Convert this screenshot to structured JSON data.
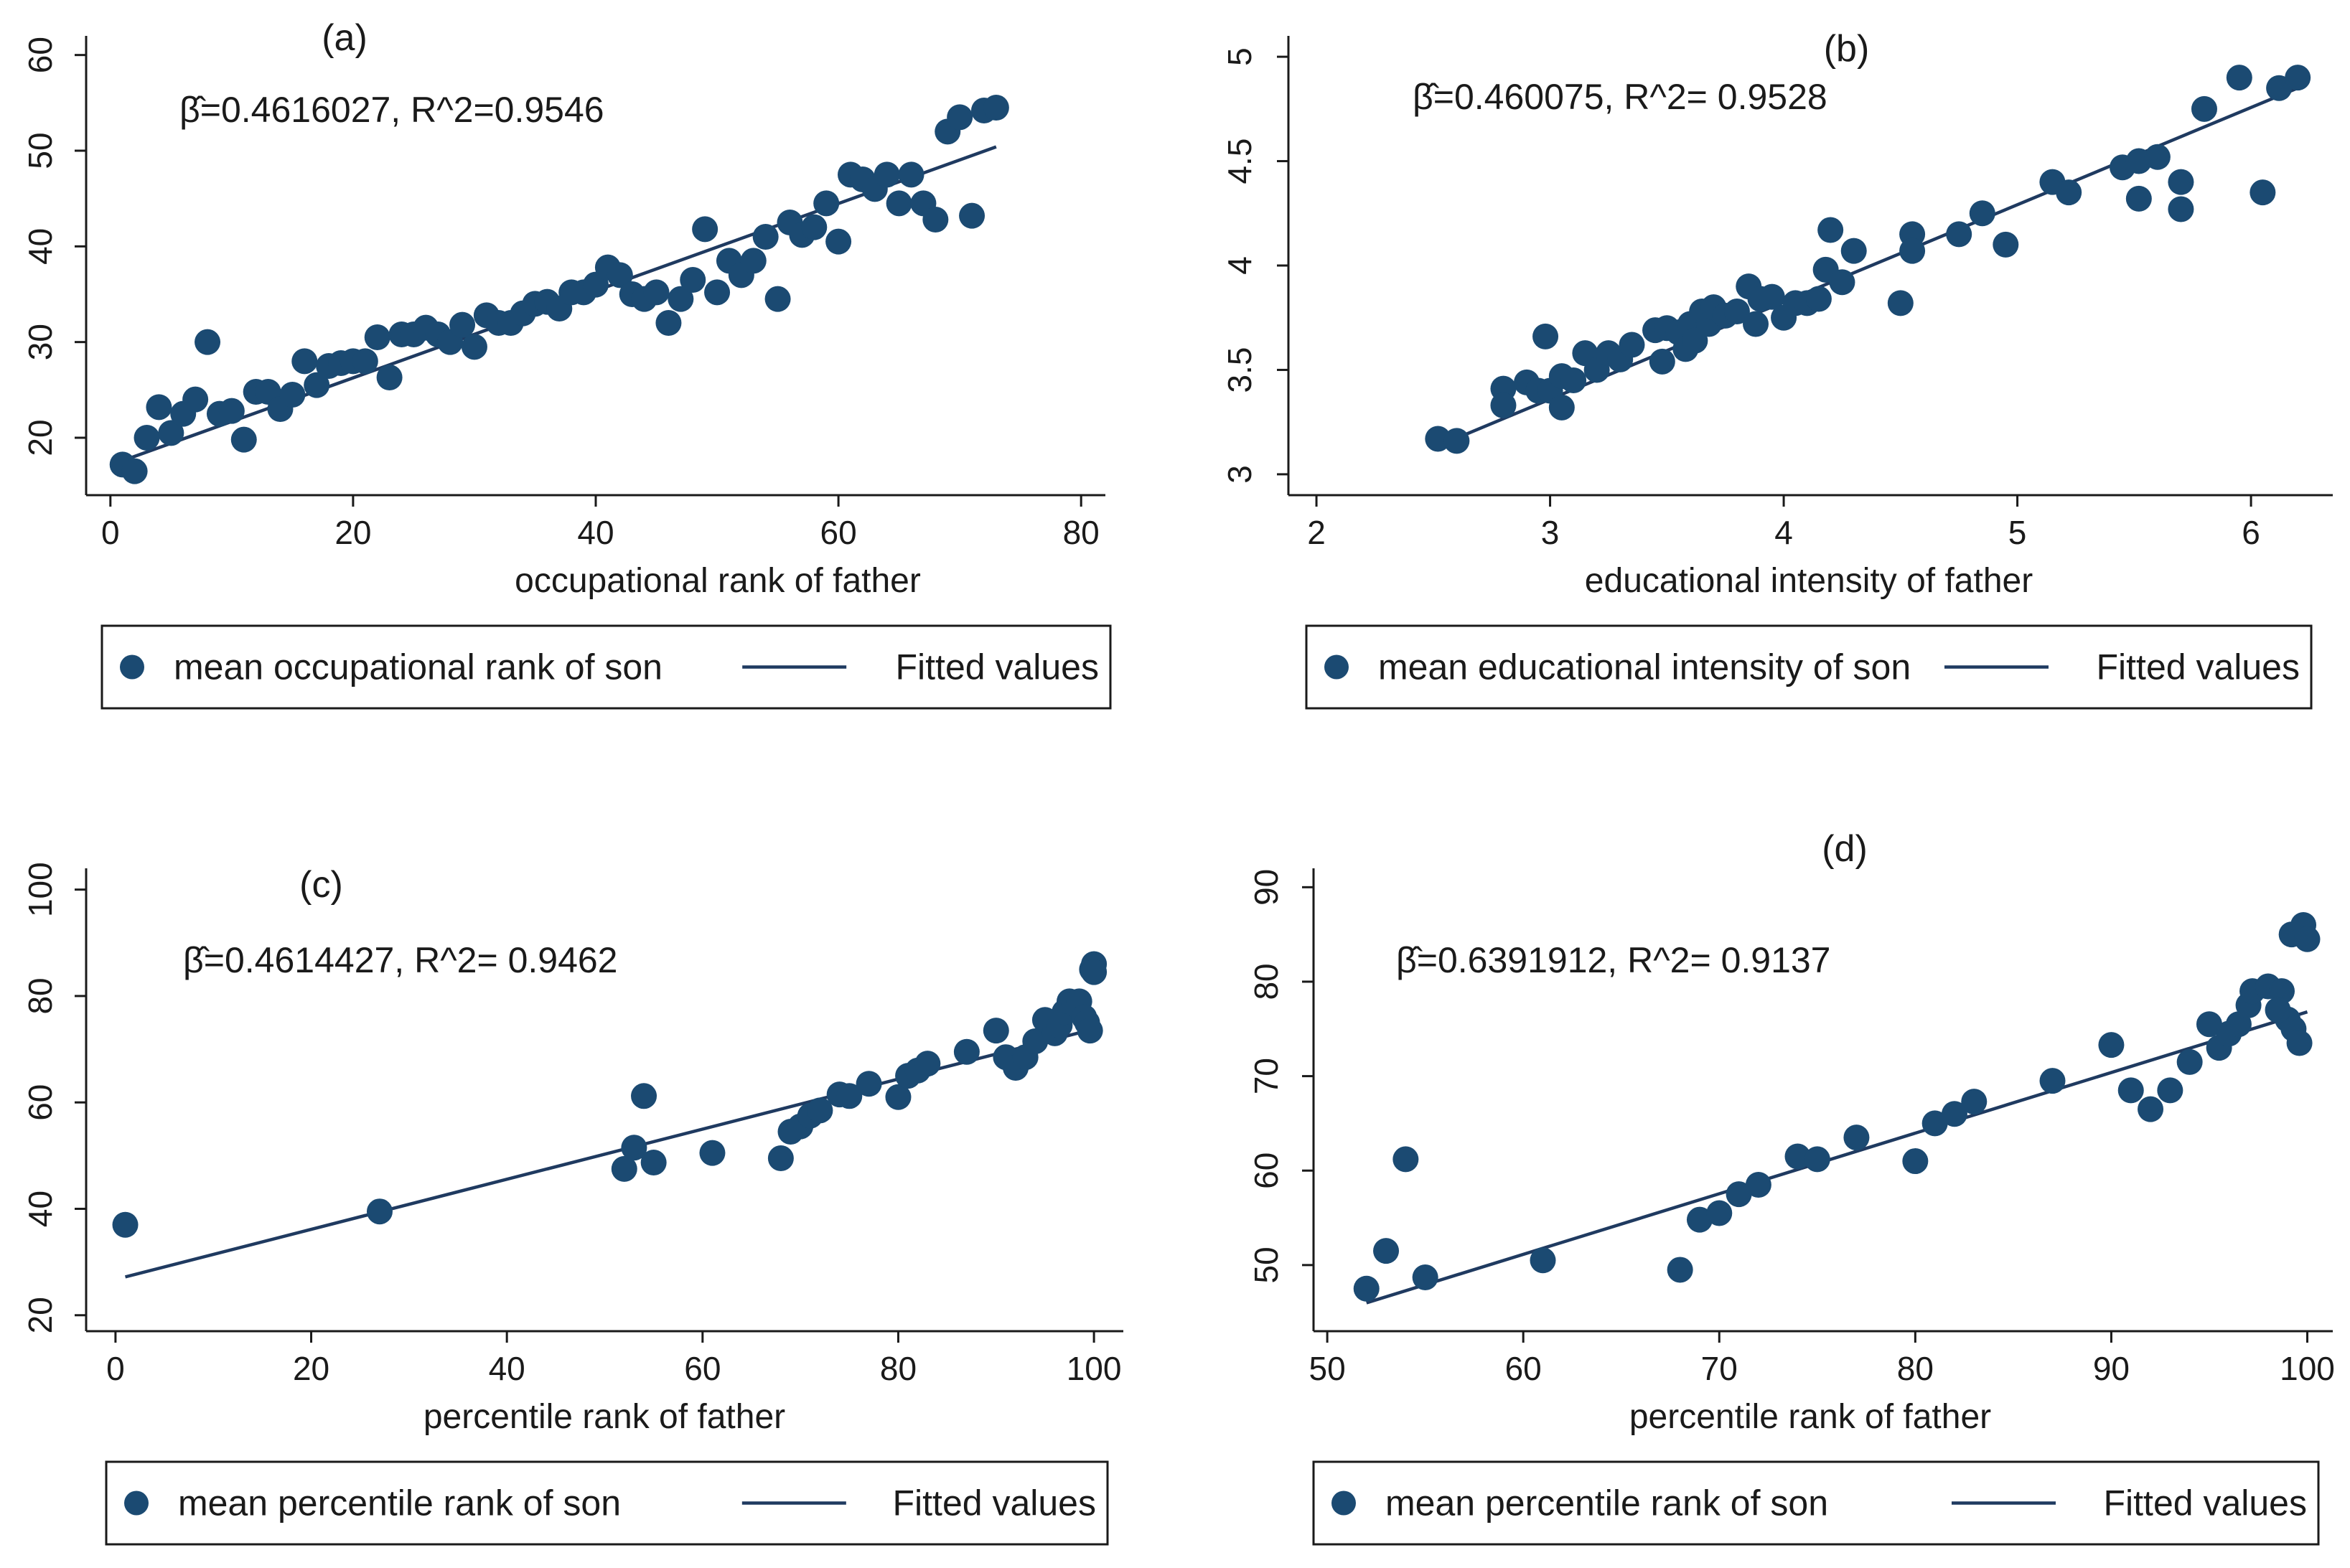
{
  "colors": {
    "points": "#1b4a72",
    "fit_line": "#1f3a60",
    "axis": "#1a1a1a",
    "background": "#ffffff"
  },
  "chart_data": [
    {
      "type": "scatter",
      "title": "(a)",
      "annotation": "β̂=0.4616027,   R^2=0.9546",
      "xlabel": "occupational rank of father",
      "ylabel": "",
      "xlim": [
        -2,
        82
      ],
      "ylim": [
        14,
        62
      ],
      "xticks": [
        0,
        20,
        40,
        60,
        80
      ],
      "yticks": [
        20,
        30,
        40,
        50,
        60
      ],
      "legend": [
        "mean occupational rank of son",
        "Fitted values"
      ],
      "fit": {
        "x": [
          1,
          73
        ],
        "y": [
          17.6,
          50.4
        ]
      },
      "points": [
        [
          1,
          17.2
        ],
        [
          2,
          16.5
        ],
        [
          3,
          20
        ],
        [
          4,
          23.2
        ],
        [
          5,
          20.5
        ],
        [
          6,
          22.5
        ],
        [
          7,
          24
        ],
        [
          8,
          30
        ],
        [
          9,
          22.5
        ],
        [
          10,
          22.8
        ],
        [
          11,
          19.8
        ],
        [
          12,
          24.8
        ],
        [
          13,
          24.8
        ],
        [
          14,
          23
        ],
        [
          15,
          24.5
        ],
        [
          16,
          28
        ],
        [
          17,
          25.5
        ],
        [
          18,
          27.5
        ],
        [
          19,
          27.8
        ],
        [
          20,
          28
        ],
        [
          21,
          28
        ],
        [
          22,
          30.5
        ],
        [
          23,
          26.3
        ],
        [
          24,
          30.8
        ],
        [
          25,
          30.8
        ],
        [
          26,
          31.5
        ],
        [
          27,
          30.8
        ],
        [
          28,
          30
        ],
        [
          29,
          31.8
        ],
        [
          30,
          29.5
        ],
        [
          31,
          32.8
        ],
        [
          32,
          32
        ],
        [
          33,
          32
        ],
        [
          34,
          33
        ],
        [
          35,
          34
        ],
        [
          36,
          34.2
        ],
        [
          37,
          33.5
        ],
        [
          38,
          35.2
        ],
        [
          39,
          35.2
        ],
        [
          40,
          36
        ],
        [
          41,
          37.8
        ],
        [
          42,
          37
        ],
        [
          43,
          35
        ],
        [
          44,
          34.5
        ],
        [
          45,
          35.2
        ],
        [
          46,
          32
        ],
        [
          47,
          34.5
        ],
        [
          48,
          36.5
        ],
        [
          49,
          41.8
        ],
        [
          50,
          35.2
        ],
        [
          51,
          38.5
        ],
        [
          52,
          37
        ],
        [
          53,
          38.5
        ],
        [
          54,
          41
        ],
        [
          55,
          34.5
        ],
        [
          56,
          42.5
        ],
        [
          57,
          41.2
        ],
        [
          58,
          42
        ],
        [
          59,
          44.5
        ],
        [
          60,
          40.5
        ],
        [
          61,
          47.5
        ],
        [
          62,
          47
        ],
        [
          63,
          46
        ],
        [
          64,
          47.5
        ],
        [
          65,
          44.5
        ],
        [
          66,
          47.5
        ],
        [
          67,
          44.5
        ],
        [
          68,
          42.8
        ],
        [
          69,
          52
        ],
        [
          70,
          53.5
        ],
        [
          71,
          43.2
        ],
        [
          72,
          54.2
        ],
        [
          73,
          54.5
        ]
      ]
    },
    {
      "type": "scatter",
      "title": "(b)",
      "annotation": "β̂=0.460075,   R^2= 0.9528",
      "xlabel": "educational intensity of father",
      "ylabel": "",
      "xlim": [
        1.88,
        6.35
      ],
      "ylim": [
        2.9,
        5.1
      ],
      "xticks": [
        2,
        3,
        4,
        5,
        6
      ],
      "yticks": [
        3,
        3.5,
        4,
        4.5,
        5
      ],
      "legend": [
        "mean educational intensity of son",
        "Fitted values"
      ],
      "fit": {
        "x": [
          2.55,
          6.2
        ],
        "y": [
          3.15,
          4.85
        ]
      },
      "points": [
        [
          2.52,
          3.17
        ],
        [
          2.6,
          3.16
        ],
        [
          2.8,
          3.41
        ],
        [
          2.8,
          3.33
        ],
        [
          2.9,
          3.44
        ],
        [
          2.95,
          3.4
        ],
        [
          2.98,
          3.66
        ],
        [
          3,
          3.4
        ],
        [
          3.05,
          3.32
        ],
        [
          3.05,
          3.47
        ],
        [
          3.1,
          3.45
        ],
        [
          3.15,
          3.58
        ],
        [
          3.2,
          3.5
        ],
        [
          3.25,
          3.58
        ],
        [
          3.3,
          3.55
        ],
        [
          3.35,
          3.62
        ],
        [
          3.45,
          3.69
        ],
        [
          3.48,
          3.54
        ],
        [
          3.5,
          3.7
        ],
        [
          3.55,
          3.68
        ],
        [
          3.58,
          3.6
        ],
        [
          3.6,
          3.72
        ],
        [
          3.62,
          3.64
        ],
        [
          3.65,
          3.78
        ],
        [
          3.68,
          3.72
        ],
        [
          3.7,
          3.8
        ],
        [
          3.75,
          3.76
        ],
        [
          3.8,
          3.78
        ],
        [
          3.85,
          3.9
        ],
        [
          3.88,
          3.72
        ],
        [
          3.9,
          3.84
        ],
        [
          3.95,
          3.85
        ],
        [
          4,
          3.75
        ],
        [
          4.05,
          3.82
        ],
        [
          4.1,
          3.82
        ],
        [
          4.15,
          3.84
        ],
        [
          4.18,
          3.98
        ],
        [
          4.2,
          4.17
        ],
        [
          4.25,
          3.92
        ],
        [
          4.3,
          4.07
        ],
        [
          4.5,
          3.82
        ],
        [
          4.55,
          4.15
        ],
        [
          4.55,
          4.07
        ],
        [
          4.75,
          4.15
        ],
        [
          4.85,
          4.25
        ],
        [
          4.95,
          4.1
        ],
        [
          5.15,
          4.4
        ],
        [
          5.22,
          4.35
        ],
        [
          5.45,
          4.47
        ],
        [
          5.52,
          4.5
        ],
        [
          5.52,
          4.32
        ],
        [
          5.6,
          4.52
        ],
        [
          5.7,
          4.4
        ],
        [
          5.7,
          4.27
        ],
        [
          5.8,
          4.75
        ],
        [
          5.95,
          4.9
        ],
        [
          6.05,
          4.35
        ],
        [
          6.12,
          4.85
        ],
        [
          6.2,
          4.9
        ]
      ]
    },
    {
      "type": "scatter",
      "title": "(c)",
      "annotation": "β̂=0.4614427,   R^2= 0.9462",
      "xlabel": "percentile rank of father",
      "ylabel": "",
      "xlim": [
        -3,
        103
      ],
      "ylim": [
        17,
        104
      ],
      "xticks": [
        0,
        20,
        40,
        60,
        80,
        100
      ],
      "yticks": [
        20,
        40,
        60,
        80,
        100
      ],
      "legend": [
        "mean percentile rank of son",
        "Fitted values"
      ],
      "fit": {
        "x": [
          1,
          100
        ],
        "y": [
          27.2,
          73.8
        ]
      },
      "points": [
        [
          1,
          37
        ],
        [
          27,
          39.5
        ],
        [
          52,
          47.5
        ],
        [
          53,
          51.5
        ],
        [
          54,
          61.2
        ],
        [
          55,
          48.7
        ],
        [
          61,
          50.5
        ],
        [
          68,
          49.5
        ],
        [
          69,
          54.5
        ],
        [
          70,
          55.5
        ],
        [
          71,
          57.5
        ],
        [
          72,
          58.5
        ],
        [
          74,
          61.5
        ],
        [
          75,
          61.2
        ],
        [
          77,
          63.5
        ],
        [
          80,
          61
        ],
        [
          81,
          65
        ],
        [
          82,
          66
        ],
        [
          83,
          67.3
        ],
        [
          87,
          69.5
        ],
        [
          90,
          73.5
        ],
        [
          91,
          68.5
        ],
        [
          92,
          66.5
        ],
        [
          93,
          68.5
        ],
        [
          94,
          71.5
        ],
        [
          95,
          75.5
        ],
        [
          96,
          73
        ],
        [
          96.5,
          74.5
        ],
        [
          97,
          77
        ],
        [
          97.5,
          79
        ],
        [
          98,
          78.5
        ],
        [
          98.5,
          79
        ],
        [
          99,
          76
        ],
        [
          99.3,
          75
        ],
        [
          99.6,
          73.5
        ],
        [
          99.8,
          85
        ],
        [
          100,
          86
        ],
        [
          100,
          84.5
        ]
      ]
    },
    {
      "type": "scatter",
      "title": "(d)",
      "annotation": "β̂=0.6391912,   R^2= 0.9137",
      "xlabel": "percentile rank of father",
      "ylabel": "",
      "xlim": [
        49.3,
        101.3
      ],
      "ylim": [
        43,
        92
      ],
      "xticks": [
        50,
        60,
        70,
        80,
        90,
        100
      ],
      "yticks": [
        50,
        60,
        70,
        80,
        90
      ],
      "legend": [
        "mean percentile rank of son",
        "Fitted values"
      ],
      "fit": {
        "x": [
          52,
          100
        ],
        "y": [
          46,
          76.8
        ]
      },
      "points": [
        [
          52,
          47.5
        ],
        [
          53,
          51.5
        ],
        [
          54,
          61.2
        ],
        [
          55,
          48.7
        ],
        [
          61,
          50.5
        ],
        [
          68,
          49.5
        ],
        [
          69,
          54.8
        ],
        [
          70,
          55.5
        ],
        [
          71,
          57.5
        ],
        [
          72,
          58.5
        ],
        [
          74,
          61.5
        ],
        [
          75,
          61.2
        ],
        [
          77,
          63.5
        ],
        [
          80,
          61
        ],
        [
          81,
          65
        ],
        [
          82,
          66
        ],
        [
          83,
          67.3
        ],
        [
          87,
          69.5
        ],
        [
          90,
          73.3
        ],
        [
          91,
          68.5
        ],
        [
          92,
          66.5
        ],
        [
          93,
          68.5
        ],
        [
          94,
          71.5
        ],
        [
          95,
          75.5
        ],
        [
          95.5,
          73
        ],
        [
          96,
          74.5
        ],
        [
          96.5,
          75.5
        ],
        [
          97,
          77.5
        ],
        [
          97.2,
          79
        ],
        [
          98,
          79.5
        ],
        [
          98.7,
          79
        ],
        [
          99,
          76
        ],
        [
          99.3,
          75
        ],
        [
          99.6,
          73.5
        ],
        [
          99.2,
          85
        ],
        [
          99.8,
          86
        ],
        [
          100,
          84.5
        ],
        [
          98.5,
          77
        ]
      ]
    }
  ]
}
